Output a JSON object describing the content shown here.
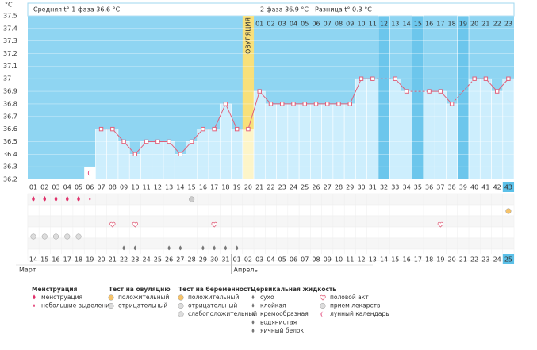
{
  "header": {
    "phase1": "Средняя t° 1 фаза 36.6 °C",
    "phase2": "2 фаза 36.9 °C",
    "diff": "Разница t° 0.3 °C"
  },
  "chart_data": {
    "type": "line",
    "y_unit": "°C",
    "ovulation_label": "ОВУЛЯЦИЯ",
    "ovulation_category": "20",
    "categories": [
      "01",
      "02",
      "03",
      "04",
      "05",
      "06",
      "07",
      "08",
      "09",
      "10",
      "11",
      "12",
      "13",
      "14",
      "15",
      "16",
      "17",
      "18",
      "19",
      "20",
      "21",
      "22",
      "23",
      "24",
      "25",
      "26",
      "27",
      "28",
      "29",
      "30",
      "31",
      "32",
      "33",
      "34",
      "35",
      "36",
      "37",
      "38",
      "39",
      "40",
      "41",
      "42",
      "43"
    ],
    "phase2_days": [
      "01",
      "02",
      "03",
      "04",
      "05",
      "06",
      "07",
      "08",
      "09",
      "10",
      "11",
      "12",
      "13",
      "14",
      "15",
      "16",
      "17",
      "18",
      "19",
      "20",
      "21",
      "22",
      "23"
    ],
    "values": [
      null,
      null,
      null,
      null,
      null,
      null,
      36.6,
      36.6,
      36.5,
      36.4,
      36.5,
      36.5,
      36.5,
      36.4,
      36.5,
      36.6,
      36.6,
      36.8,
      36.6,
      36.6,
      36.9,
      36.8,
      36.8,
      36.8,
      36.8,
      36.8,
      36.8,
      36.8,
      36.8,
      37.0,
      37.0,
      null,
      37.0,
      36.9,
      null,
      36.9,
      36.9,
      36.8,
      null,
      37.0,
      37.0,
      36.9,
      37.0
    ],
    "color": "#e0607a",
    "ylim": [
      36.2,
      37.5
    ],
    "yticks": [
      36.2,
      36.3,
      36.4,
      36.5,
      36.6,
      36.7,
      36.8,
      36.9,
      37,
      37.1,
      37.2,
      37.3,
      37.4,
      37.5
    ],
    "grid": true,
    "dates": [
      "14",
      "15",
      "16",
      "17",
      "18",
      "19",
      "20",
      "21",
      "22",
      "23",
      "24",
      "25",
      "26",
      "27",
      "28",
      "29",
      "30",
      "31",
      "01",
      "02",
      "03",
      "04",
      "05",
      "06",
      "07",
      "08",
      "09",
      "10",
      "11",
      "12",
      "13",
      "14",
      "15",
      "16",
      "17",
      "18",
      "19",
      "20",
      "21",
      "22",
      "23",
      "24",
      "25"
    ],
    "red_dates": [
      2,
      3,
      9,
      10,
      16,
      17,
      23,
      24,
      30,
      31,
      37,
      38
    ],
    "months": [
      "Март",
      "Апрель"
    ],
    "symbols": {
      "menstruation": [
        0,
        1,
        2,
        3,
        4
      ],
      "spotting": [
        5
      ],
      "ovulation_negative": [
        14
      ],
      "sex": [
        7,
        9,
        16,
        36
      ],
      "medication": [
        0,
        1,
        2,
        3,
        4
      ],
      "cervical": [
        8,
        9,
        12,
        13,
        15,
        16,
        17,
        18
      ],
      "moon": [
        5
      ],
      "pregnancy_positive": [
        42
      ]
    }
  },
  "legend": [
    {
      "title": "Менструация",
      "items": [
        "менструация",
        "небольшие выделения"
      ]
    },
    {
      "title": "Тест на овуляцию",
      "items": [
        "положительный",
        "отрицательный"
      ]
    },
    {
      "title": "Тест на беременность",
      "items": [
        "положительный",
        "отрицательный",
        "слабоположительный"
      ]
    },
    {
      "title": "Цервикальная жидкость",
      "items": [
        "сухо",
        "клейкая",
        "кремообразная",
        "водянистая",
        "яичный белок"
      ]
    },
    {
      "items": [
        "половой акт",
        "прием лекарств",
        "лунный календарь"
      ]
    }
  ]
}
